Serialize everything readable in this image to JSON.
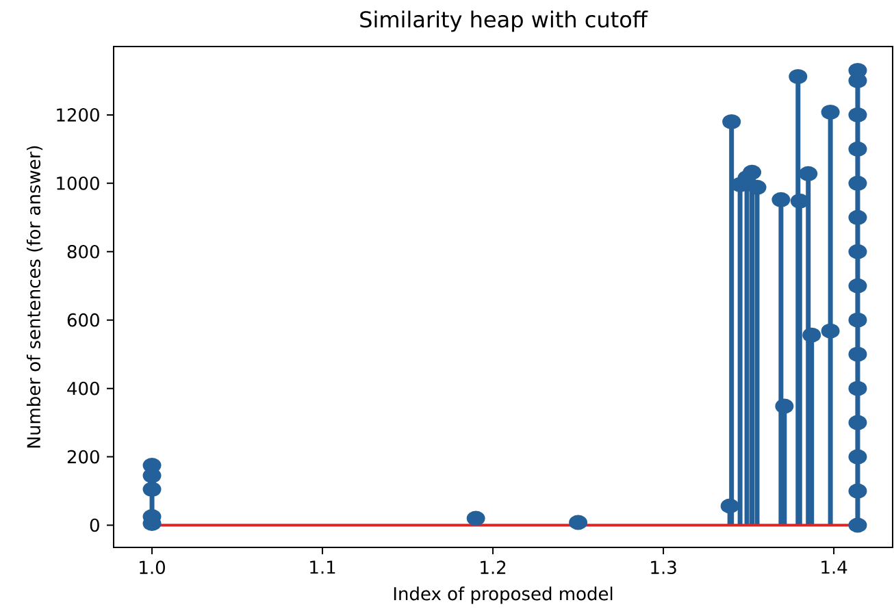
{
  "chart_data": {
    "type": "lollipop",
    "title": "Similarity heap with cutoff",
    "xlabel": "Index of proposed model",
    "ylabel": "Number of sentences (for answer)",
    "x": [
      1.0,
      1.0,
      1.0,
      1.0,
      1.0,
      1.19,
      1.25,
      1.339,
      1.34,
      1.345,
      1.349,
      1.352,
      1.355,
      1.369,
      1.371,
      1.379,
      1.38,
      1.385,
      1.387,
      1.398,
      1.398,
      1.414,
      1.414,
      1.414,
      1.414,
      1.414,
      1.414,
      1.414,
      1.414,
      1.414,
      1.414,
      1.414,
      1.414,
      1.414,
      1.414,
      1.414
    ],
    "values": [
      175,
      145,
      105,
      25,
      5,
      20,
      8,
      56,
      1180,
      996,
      1016,
      1032,
      988,
      952,
      348,
      1312,
      948,
      1028,
      556,
      1208,
      568,
      0,
      100,
      200,
      300,
      400,
      500,
      600,
      700,
      800,
      900,
      1000,
      1100,
      1200,
      1300,
      1330
    ],
    "color": "#24609a",
    "marker": "circle",
    "xlim": [
      0.9775,
      1.4345
    ],
    "ylim": [
      -65,
      1400
    ],
    "xticks": [
      {
        "value": 1,
        "label": "1.0"
      },
      1.1,
      1.2,
      1.3,
      1.4
    ],
    "yticks": [
      0,
      200,
      400,
      600,
      800,
      1000,
      1200
    ],
    "ref_lines": [
      {
        "axis": "y",
        "value": 0,
        "color": "#d62728"
      }
    ]
  }
}
